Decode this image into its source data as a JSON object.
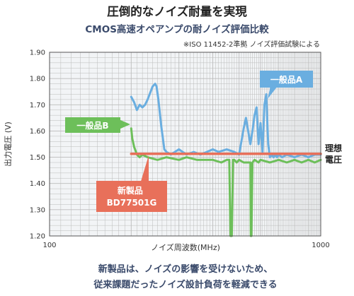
{
  "header": {
    "title": "圧倒的なノイズ耐量を実現",
    "subtitle": "CMOS高速オペアンプの耐ノイズ評価比較",
    "note": "※ISO 11452-2準拠 ノイズ評価試験による"
  },
  "footer": {
    "line1": "新製品は、ノイズの影響を受けないため、",
    "line2": "従来課題だったノイズ設計負荷を軽減できる"
  },
  "colors": {
    "product_a": "#6aaee0",
    "product_b": "#6dbf5a",
    "new_product": "#e8705a",
    "grid": "#bbbbbb",
    "frame": "#555555",
    "plot_bg": "#f2f4f6",
    "text_dark": "#3a4a6b"
  },
  "chart_data": {
    "type": "line",
    "xlabel": "ノイズ周波数(MHz)",
    "ylabel": "出力電圧 (V)",
    "x_scale": "log",
    "xlim": [
      100,
      1000
    ],
    "ylim": [
      1.2,
      1.9
    ],
    "x_tick_labels": [
      "100",
      "1000"
    ],
    "y_ticks": [
      1.2,
      1.3,
      1.4,
      1.5,
      1.6,
      1.7,
      1.8,
      1.9
    ],
    "y_tick_labels": [
      "1.20",
      "1.30",
      "1.40",
      "1.50",
      "1.60",
      "1.70",
      "1.80",
      "1.90"
    ],
    "grid": true,
    "ideal_label": "理想\n電圧",
    "ideal_value": 1.5,
    "series": [
      {
        "name": "一般品A",
        "color": "#6aaee0",
        "x": [
          200,
          205,
          210,
          215,
          220,
          225,
          230,
          240,
          245,
          248,
          252,
          258,
          265,
          270,
          280,
          300,
          320,
          340,
          360,
          380,
          400,
          420,
          450,
          480,
          500,
          520,
          530,
          540,
          550,
          560,
          570,
          580,
          590,
          600,
          610,
          620,
          630,
          640,
          650,
          660,
          670,
          680,
          690,
          700,
          720,
          750,
          800,
          850,
          900,
          950,
          1000
        ],
        "y": [
          1.73,
          1.71,
          1.68,
          1.7,
          1.69,
          1.7,
          1.72,
          1.77,
          1.78,
          1.77,
          1.72,
          1.62,
          1.53,
          1.52,
          1.51,
          1.53,
          1.51,
          1.52,
          1.51,
          1.52,
          1.53,
          1.52,
          1.53,
          1.52,
          1.51,
          1.61,
          1.65,
          1.6,
          1.55,
          1.6,
          1.66,
          1.69,
          1.55,
          1.63,
          1.52,
          1.7,
          1.74,
          1.55,
          1.5,
          1.51,
          1.5,
          1.51,
          1.5,
          1.51,
          1.5,
          1.51,
          1.5,
          1.51,
          1.5,
          1.51,
          1.51
        ]
      },
      {
        "name": "一般品B",
        "color": "#6dbf5a",
        "x": [
          200,
          202,
          205,
          210,
          215,
          220,
          230,
          250,
          270,
          300,
          320,
          350,
          380,
          400,
          430,
          450,
          460,
          465,
          470,
          475,
          480,
          490,
          500,
          520,
          540,
          550,
          552,
          555,
          560,
          570,
          590,
          600,
          650,
          700,
          750,
          800,
          850,
          900,
          950,
          1000
        ],
        "y": [
          1.61,
          1.57,
          1.54,
          1.51,
          1.5,
          1.51,
          1.5,
          1.49,
          1.5,
          1.49,
          1.5,
          1.49,
          1.49,
          1.49,
          1.48,
          1.49,
          1.49,
          1.2,
          1.2,
          1.49,
          1.49,
          1.48,
          1.49,
          1.48,
          1.48,
          1.48,
          1.2,
          1.2,
          1.48,
          1.49,
          1.48,
          1.49,
          1.48,
          1.49,
          1.48,
          1.49,
          1.48,
          1.49,
          1.48,
          1.49
        ]
      },
      {
        "name": "新製品 BD77501G",
        "color": "#e8705a",
        "x": [
          200,
          1000
        ],
        "y": [
          1.513,
          1.513
        ]
      }
    ],
    "callouts": [
      {
        "series_index": 0,
        "text": "一般品A"
      },
      {
        "series_index": 1,
        "text": "一般品B"
      },
      {
        "series_index": 2,
        "text_line1": "新製品",
        "text_line2": "BD77501G"
      }
    ]
  }
}
